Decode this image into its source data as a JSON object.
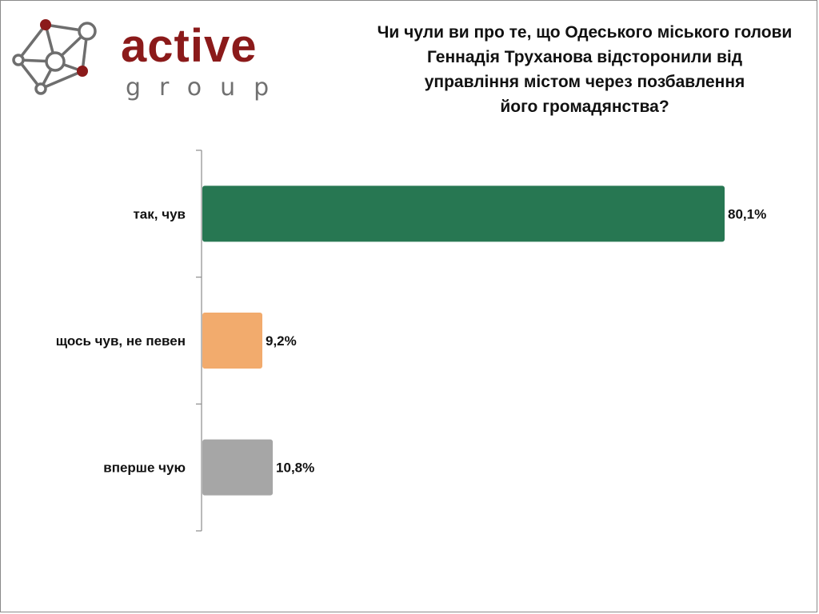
{
  "logo": {
    "word": "active",
    "sub": "group",
    "colors": {
      "accent": "#8b1a1a",
      "node": "#6e6e6e"
    }
  },
  "title": "Чи чули ви про те, що Одеського міського голови\nГеннадія Труханова відсторонили від\nуправління містом через позбавлення\nйого громадянства?",
  "chart_data": {
    "type": "bar",
    "orientation": "horizontal",
    "title": "Чи чули ви про те, що Одеського міського голови Геннадія Труханова відсторонили від управління містом через позбавлення його громадянства?",
    "categories": [
      "так, чув",
      "щось чув, не певен",
      "вперше чую"
    ],
    "values": [
      80.1,
      9.2,
      10.8
    ],
    "value_labels": [
      "80,1%",
      "9,2%",
      "10,8%"
    ],
    "colors": [
      "#277752",
      "#f2ab6d",
      "#a6a6a6"
    ],
    "xlim": [
      0,
      100
    ],
    "xlabel": "",
    "ylabel": "",
    "grid": false,
    "legend": "none"
  }
}
